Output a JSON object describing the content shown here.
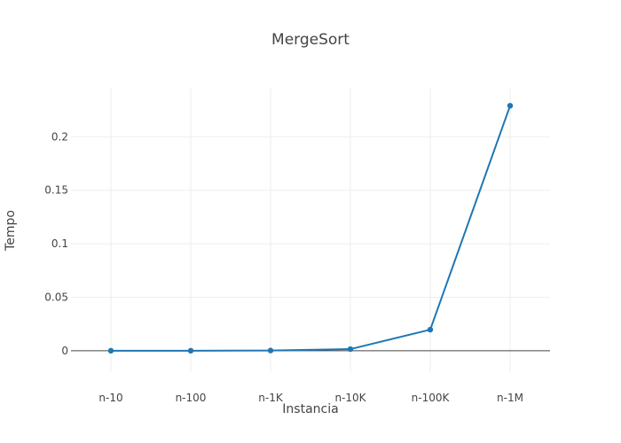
{
  "chart_data": {
    "type": "line",
    "title": "MergeSort",
    "xlabel": "Instancia",
    "ylabel": "Tempo",
    "categories": [
      "n-10",
      "n-100",
      "n-1K",
      "n-10K",
      "n-100K",
      "n-1M"
    ],
    "series": [
      {
        "values": [
          0.0,
          0.0,
          0.0002,
          0.0015,
          0.0197,
          0.229
        ]
      }
    ],
    "ylim": [
      -0.02,
      0.245
    ],
    "yticks": [
      0,
      0.05,
      0.1,
      0.15,
      0.2
    ],
    "ytick_labels": [
      "0",
      "0.05",
      "0.1",
      "0.15",
      "0.2"
    ],
    "grid": true,
    "legend": "none",
    "colors": {
      "series": "#1f77b4",
      "grid": "#eeeeee",
      "zero_line": "#444444",
      "text": "#444444"
    }
  }
}
